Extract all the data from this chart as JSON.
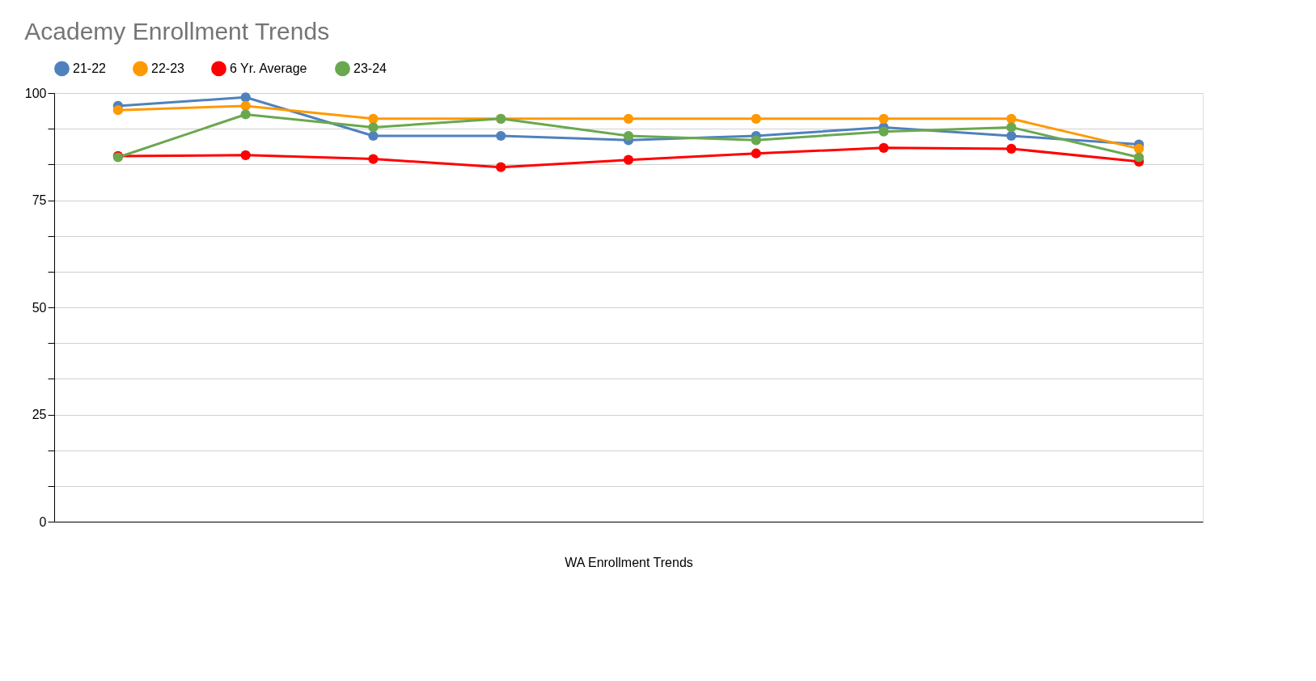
{
  "chart_data": {
    "type": "line",
    "title": "Academy Enrollment Trends",
    "xlabel": "WA Enrollment Trends",
    "categories": [
      null,
      null,
      null,
      null,
      null,
      null,
      null,
      null,
      null
    ],
    "series": [
      {
        "name": "21-22",
        "color": "#4f81bd",
        "values": [
          97,
          99,
          90,
          90,
          89,
          90,
          92,
          90,
          88
        ]
      },
      {
        "name": "22-23",
        "color": "#ff9900",
        "values": [
          96,
          97,
          94,
          94,
          94,
          94,
          94,
          94,
          87
        ]
      },
      {
        "name": "6 Yr. Average",
        "color": "#ff0000",
        "values": [
          85.3,
          85.5,
          84.6,
          82.7,
          84.4,
          85.9,
          87.2,
          87,
          84
        ]
      },
      {
        "name": "23-24",
        "color": "#6aa84f",
        "values": [
          85,
          95,
          92,
          94,
          90,
          89,
          91,
          92,
          85
        ]
      }
    ],
    "ylim": [
      0,
      100
    ],
    "yticks": [
      0,
      {
        "value": 8.333,
        "label": null
      },
      {
        "value": 16.667,
        "label": null
      },
      25,
      {
        "value": 33.333,
        "label": null
      },
      {
        "value": 41.667,
        "label": null
      },
      50,
      {
        "value": 58.333,
        "label": null
      },
      {
        "value": 66.667,
        "label": null
      },
      75,
      {
        "value": 83.333,
        "label": null
      },
      {
        "value": 91.667,
        "label": null
      },
      100
    ],
    "grid": "y",
    "legend": "top",
    "marker": "circle",
    "line_style": "solid"
  }
}
